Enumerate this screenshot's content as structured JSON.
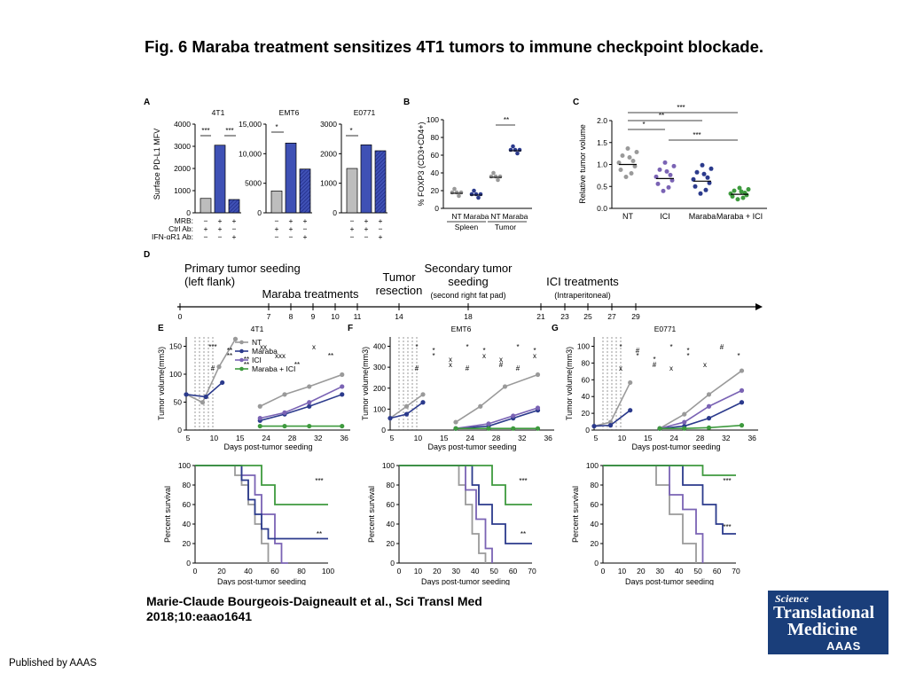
{
  "title": "Fig. 6 Maraba treatment sensitizes 4T1 tumors to immune checkpoint blockade.",
  "citation_line1": "Marie-Claude Bourgeois-Daigneault et al., Sci Transl Med",
  "citation_line2": "2018;10:eaao1641",
  "publisher": "Published by AAAS",
  "logo": {
    "line1": "Science",
    "line2": "Translational",
    "line3": "Medicine",
    "line4": "AAAS"
  },
  "colors": {
    "nt": "#9a9a9a",
    "maraba": "#2b3a8c",
    "ici": "#7a63b4",
    "combo": "#3e9a3e",
    "bar_blue": "#3f51b5"
  },
  "panelA": {
    "label": "A",
    "ylabel": "Surface PD-L1 MFV",
    "row_labels": [
      "MRB:",
      "Ctrl Ab:",
      "IFN-αR1 Ab:"
    ],
    "conditions": [
      [
        "−",
        "+",
        "+"
      ],
      [
        "+",
        "+",
        "−"
      ],
      [
        "−",
        "−",
        "+"
      ]
    ],
    "sig": [
      "***",
      "***",
      "*",
      "*"
    ],
    "charts": [
      {
        "title": "4T1",
        "ymax": 4000,
        "ticks": [
          "0",
          "1000",
          "2000",
          "3000",
          "4000"
        ],
        "values": [
          650,
          3050,
          600
        ]
      },
      {
        "title": "EMT6",
        "ymax": 15000,
        "ticks": [
          "0",
          "5000",
          "10,000",
          "15,000"
        ],
        "values": [
          3700,
          11800,
          7400
        ]
      },
      {
        "title": "E0771",
        "ymax": 3000,
        "ticks": [
          "0",
          "1000",
          "2000",
          "3000"
        ],
        "values": [
          1500,
          2300,
          2100
        ]
      }
    ]
  },
  "panelB": {
    "label": "B",
    "ylabel": "% FOXP3 (CD3+CD4+)",
    "ticks": [
      "0",
      "20",
      "40",
      "60",
      "80",
      "100"
    ],
    "groups": [
      "NT",
      "Maraba",
      "NT",
      "Maraba"
    ],
    "tissues": [
      "Spleen",
      "Tumor"
    ],
    "means": [
      17,
      15,
      35,
      65
    ],
    "sig": "**"
  },
  "panelC": {
    "label": "C",
    "ylabel": "Relative tumor volume",
    "ticks": [
      "0.0",
      "0.5",
      "1.0",
      "1.5",
      "2.0"
    ],
    "groups": [
      "NT",
      "ICI",
      "Maraba",
      "Maraba + ICI"
    ],
    "means": [
      1.0,
      0.68,
      0.62,
      0.32
    ],
    "sig": [
      "***",
      "**",
      "*",
      "***"
    ]
  },
  "panelD": {
    "label": "D",
    "events": [
      "Primary tumor seeding",
      "(left flank)",
      "Maraba treatments",
      "Tumor",
      "resection",
      "Secondary tumor",
      "seeding",
      "(second right fat pad)",
      "ICI treatments",
      "(Intraperitoneal)"
    ],
    "days": [
      "0",
      "7",
      "8",
      "9",
      "10",
      "11",
      "14",
      "18",
      "21",
      "23",
      "25",
      "27",
      "29"
    ]
  },
  "growth": [
    {
      "label": "E",
      "title": "4T1",
      "ylabel": "Tumor volume(mm3)",
      "xlabel": "Days post-tumor seeding",
      "yticks": [
        "0",
        "50",
        "100",
        "150"
      ],
      "xticks": [
        "5",
        "10",
        "15",
        "24",
        "28",
        "32",
        "36"
      ],
      "legend": [
        "NT",
        "Maraba",
        "ICI",
        "Maraba + ICI"
      ],
      "marks": [
        "***",
        "**",
        "**",
        "xx",
        "xxx",
        "**",
        "x",
        "**",
        "#",
        "**",
        "**"
      ]
    },
    {
      "label": "F",
      "title": "EMT6",
      "ylabel": "Tumor volume(mm3)",
      "xlabel": "Days post-tumor seeding",
      "yticks": [
        "0",
        "100",
        "200",
        "300",
        "400"
      ],
      "xticks": [
        "5",
        "10",
        "15",
        "24",
        "28",
        "32",
        "36"
      ],
      "marks": [
        "*",
        "*",
        "x",
        "*",
        "x",
        "#",
        "*",
        "x",
        "#",
        "*",
        "x",
        "#",
        "*",
        "x",
        "#",
        "*"
      ]
    },
    {
      "label": "G",
      "title": "E0771",
      "ylabel": "Tumor volume(mm3)",
      "xlabel": "Days post-tumor seeding",
      "yticks": [
        "0",
        "20",
        "40",
        "60",
        "80",
        "100"
      ],
      "xticks": [
        "5",
        "10",
        "15",
        "24",
        "28",
        "32",
        "36"
      ],
      "marks": [
        "*",
        "*",
        "#",
        "*",
        "*",
        "x",
        "#",
        "*",
        "x",
        "#",
        "*",
        "x",
        "*"
      ]
    }
  ],
  "survival": [
    {
      "ylabel": "Percent survival",
      "xlabel": "Days post-tumor seeding",
      "yticks": [
        "0",
        "20",
        "40",
        "60",
        "80",
        "100"
      ],
      "xticks": [
        "0",
        "20",
        "40",
        "60",
        "80",
        "100"
      ],
      "sig": [
        "***",
        "**"
      ]
    },
    {
      "ylabel": "Percent survival",
      "xlabel": "Days post-tumor seeding",
      "yticks": [
        "0",
        "20",
        "40",
        "60",
        "80",
        "100"
      ],
      "xticks": [
        "0",
        "10",
        "20",
        "30",
        "40",
        "50",
        "60",
        "70"
      ],
      "sig": [
        "***",
        "**"
      ]
    },
    {
      "ylabel": "Percent survival",
      "xlabel": "Days post-tumor seeding",
      "yticks": [
        "0",
        "20",
        "40",
        "60",
        "80",
        "100"
      ],
      "xticks": [
        "0",
        "10",
        "20",
        "30",
        "40",
        "50",
        "60",
        "70"
      ],
      "sig": [
        "***",
        "***"
      ]
    }
  ]
}
